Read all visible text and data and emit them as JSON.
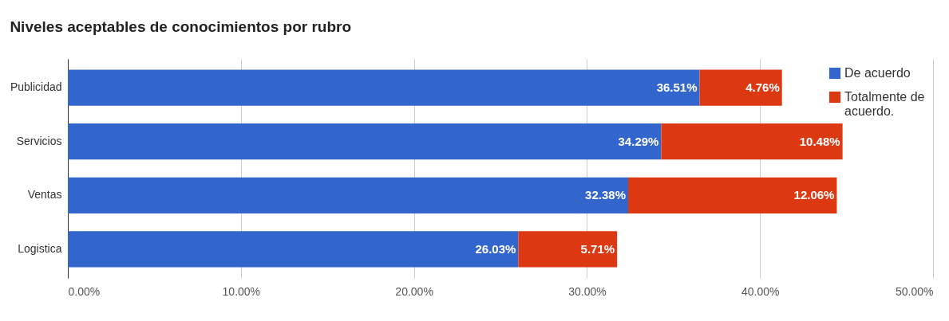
{
  "chart_data": {
    "type": "bar",
    "orientation": "horizontal",
    "stacked": true,
    "title": "Niveles aceptables de conocimientos por rubro",
    "categories": [
      "Publicidad",
      "Servicios",
      "Ventas",
      "Logistica"
    ],
    "series": [
      {
        "name": "De acuerdo",
        "color": "#3366cc",
        "values": [
          36.51,
          34.29,
          32.38,
          26.03
        ],
        "value_labels": [
          "36.51%",
          "34.29%",
          "32.38%",
          "26.03%"
        ]
      },
      {
        "name": "Totalmente de acuerdo.",
        "color": "#dc3912",
        "values": [
          4.76,
          10.48,
          12.06,
          5.71
        ],
        "value_labels": [
          "4.76%",
          "10.48%",
          "12.06%",
          "5.71%"
        ]
      }
    ],
    "xlim": [
      0,
      50
    ],
    "xticks": [
      {
        "value": 0,
        "label": "0.00%"
      },
      {
        "value": 10,
        "label": "10.00%"
      },
      {
        "value": 20,
        "label": "20.00%"
      },
      {
        "value": 30,
        "label": "30.00%"
      },
      {
        "value": 40,
        "label": "40.00%"
      },
      {
        "value": 50,
        "label": "50.00%"
      }
    ],
    "grid": "x",
    "legend": "top right"
  }
}
